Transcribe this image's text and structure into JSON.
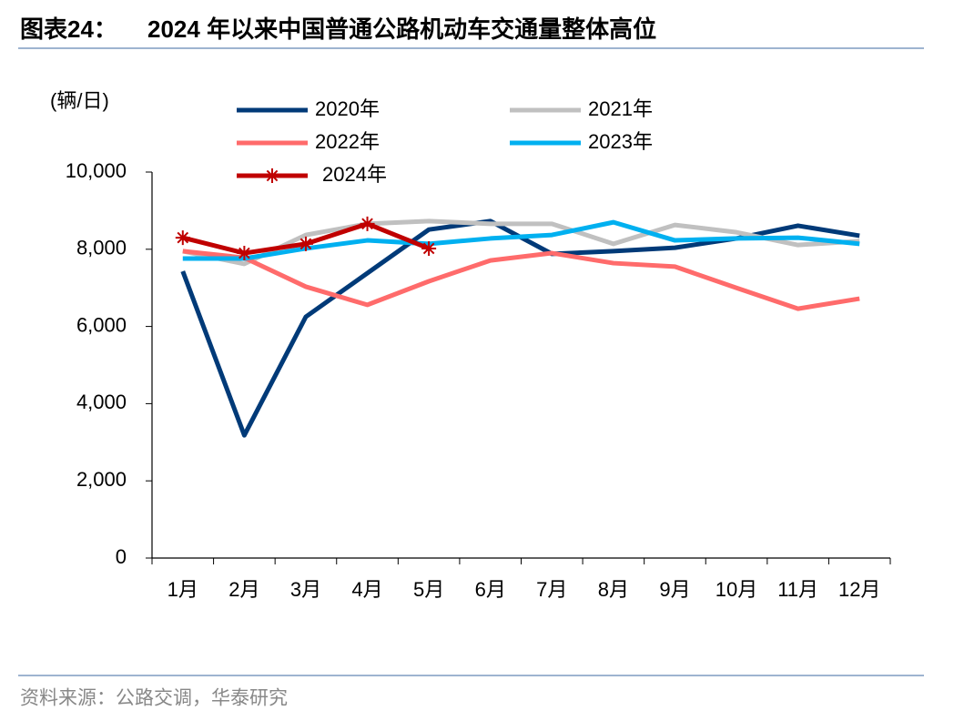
{
  "chart_data": {
    "type": "line",
    "figure_label": "图表24：",
    "title": "2024 年以来中国普通公路机动车交通量整体高位",
    "y_label": "(辆/日)",
    "source": "资料来源：公路交调，华泰研究",
    "categories": [
      "1月",
      "2月",
      "3月",
      "4月",
      "5月",
      "6月",
      "7月",
      "8月",
      "9月",
      "10月",
      "11月",
      "12月"
    ],
    "series": [
      {
        "name": "2020年",
        "color": "#003a78",
        "values": [
          7430,
          3180,
          6250,
          7380,
          8510,
          8730,
          7880,
          7950,
          8040,
          8280,
          8610,
          8350
        ]
      },
      {
        "name": "2021年",
        "color": "#c0c0c0",
        "values": [
          7950,
          7620,
          8370,
          8660,
          8730,
          8660,
          8660,
          8140,
          8630,
          8440,
          8110,
          8210
        ]
      },
      {
        "name": "2022年",
        "color": "#ff6b6b",
        "values": [
          7950,
          7780,
          7030,
          6560,
          7170,
          7710,
          7900,
          7640,
          7550,
          7000,
          6460,
          6720
        ]
      },
      {
        "name": "2023年",
        "color": "#00b0f0",
        "values": [
          7760,
          7760,
          8020,
          8230,
          8140,
          8280,
          8370,
          8700,
          8230,
          8280,
          8300,
          8140
        ]
      },
      {
        "name": "2024年",
        "color": "#c00000",
        "marker": "star",
        "values": [
          8300,
          7900,
          8140,
          8660,
          8020,
          null,
          null,
          null,
          null,
          null,
          null,
          null
        ]
      }
    ],
    "ylim": [
      0,
      10000
    ],
    "yticks": [
      0,
      {
        "value": 2000,
        "label": "2,000"
      },
      {
        "value": 4000,
        "label": "4,000"
      },
      {
        "value": 6000,
        "label": "6,000"
      },
      {
        "value": 8000,
        "label": "8,000"
      },
      {
        "value": 10000,
        "label": "10,000"
      }
    ],
    "grid": false
  }
}
